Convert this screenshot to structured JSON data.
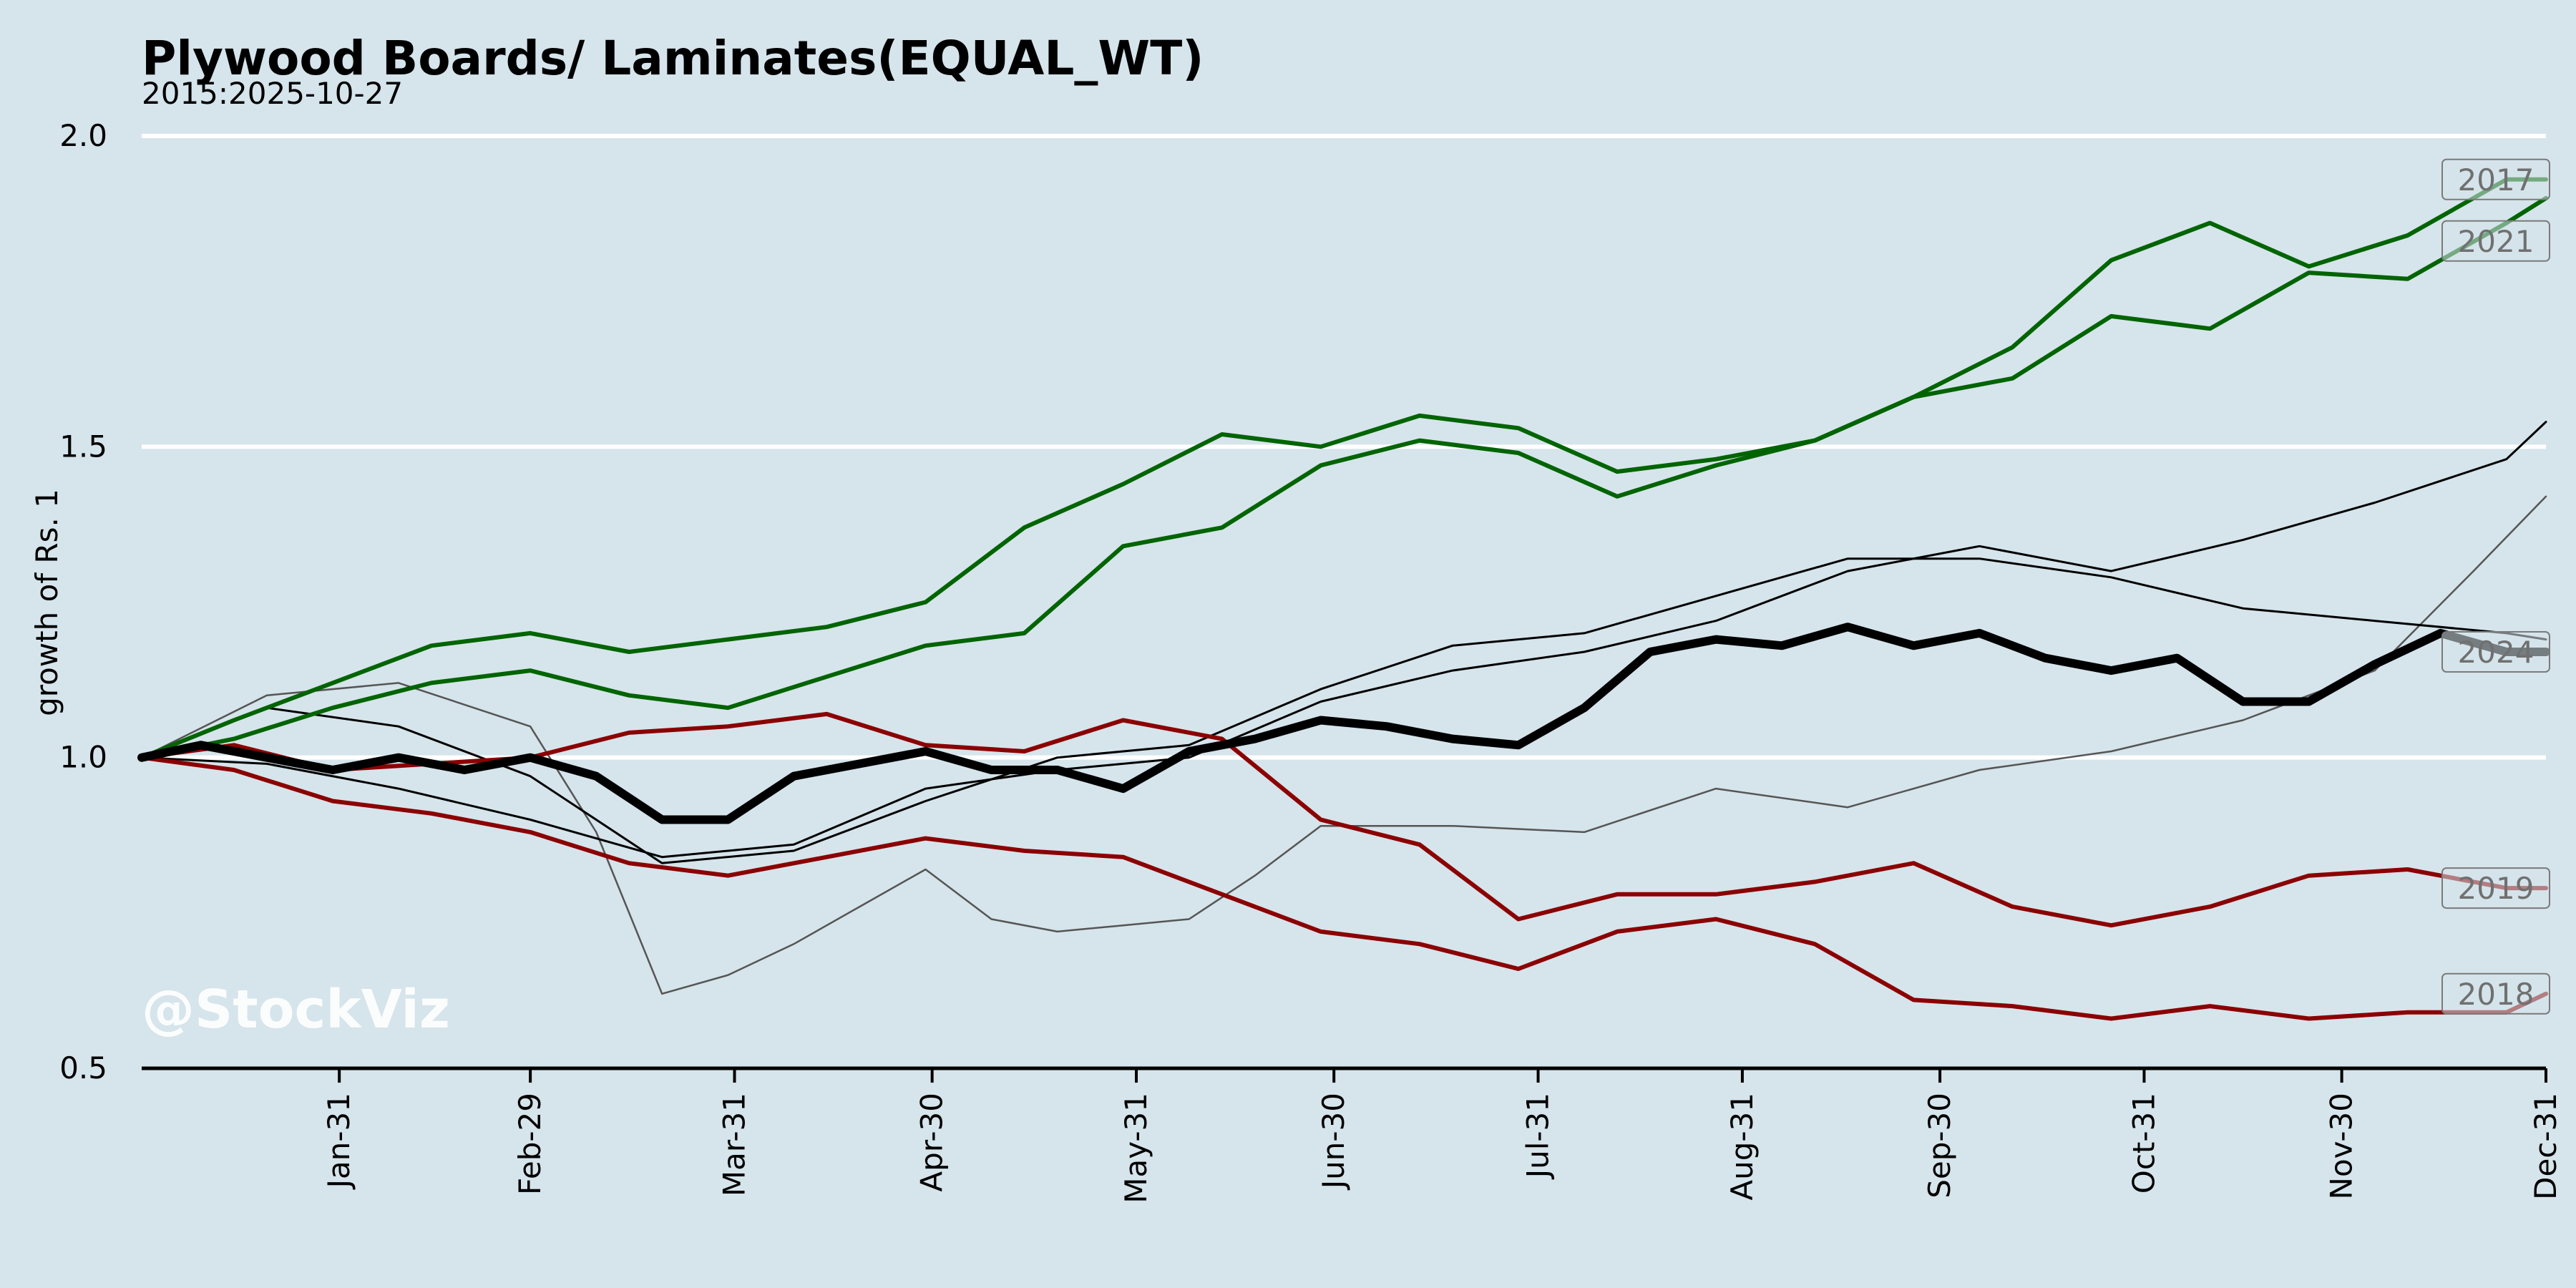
{
  "chart_data": {
    "type": "line",
    "title": "Plywood Boards/ Laminates(EQUAL_WT)",
    "subtitle": "2015:2025-10-27",
    "ylabel": "growth of Rs. 1",
    "xlabel": "",
    "watermark": "@StockViz",
    "ylim": [
      0.5,
      2.0
    ],
    "yticks": [
      "0.5",
      "1.0",
      "1.5",
      "2.0"
    ],
    "xlim": [
      1,
      366
    ],
    "xticks": [
      {
        "day": 31,
        "label": "Jan-31"
      },
      {
        "day": 60,
        "label": "Feb-29"
      },
      {
        "day": 91,
        "label": "Mar-31"
      },
      {
        "day": 121,
        "label": "Apr-30"
      },
      {
        "day": 152,
        "label": "May-31"
      },
      {
        "day": 182,
        "label": "Jun-30"
      },
      {
        "day": 213,
        "label": "Jul-31"
      },
      {
        "day": 244,
        "label": "Aug-31"
      },
      {
        "day": 274,
        "label": "Sep-30"
      },
      {
        "day": 305,
        "label": "Oct-31"
      },
      {
        "day": 335,
        "label": "Nov-30"
      },
      {
        "day": 366,
        "label": "Dec-31"
      }
    ],
    "grid": "horizontal",
    "colors": {
      "background": "#d6e4eb",
      "gridline": "#ffffff",
      "positive": "#006400",
      "negative": "#8b0000",
      "neutral": "#000000",
      "faded": "#555555"
    },
    "series": [
      {
        "name": "2017",
        "style": "positive",
        "x": [
          1,
          15,
          30,
          45,
          60,
          75,
          90,
          105,
          120,
          135,
          150,
          165,
          180,
          195,
          210,
          225,
          240,
          255,
          270,
          285,
          300,
          315,
          330,
          345,
          360,
          366
        ],
        "y": [
          1.0,
          1.06,
          1.12,
          1.18,
          1.2,
          1.17,
          1.19,
          1.21,
          1.25,
          1.37,
          1.44,
          1.52,
          1.5,
          1.55,
          1.53,
          1.46,
          1.48,
          1.51,
          1.58,
          1.66,
          1.8,
          1.86,
          1.79,
          1.84,
          1.93,
          1.93
        ]
      },
      {
        "name": "2021",
        "style": "positive",
        "x": [
          1,
          15,
          30,
          45,
          60,
          75,
          90,
          105,
          120,
          135,
          150,
          165,
          180,
          195,
          210,
          225,
          240,
          255,
          270,
          285,
          300,
          315,
          330,
          345,
          360,
          366
        ],
        "y": [
          1.0,
          1.03,
          1.08,
          1.12,
          1.14,
          1.1,
          1.08,
          1.13,
          1.18,
          1.2,
          1.34,
          1.37,
          1.47,
          1.51,
          1.49,
          1.42,
          1.47,
          1.51,
          1.58,
          1.61,
          1.71,
          1.69,
          1.78,
          1.77,
          1.86,
          1.9
        ]
      },
      {
        "name": "2024",
        "style": "neutral-bold",
        "x": [
          1,
          10,
          20,
          30,
          40,
          50,
          60,
          70,
          80,
          90,
          100,
          110,
          120,
          130,
          140,
          150,
          160,
          170,
          180,
          190,
          200,
          210,
          220,
          230,
          240,
          250,
          260,
          270,
          280,
          290,
          300,
          310,
          320,
          330,
          340,
          350,
          360,
          366
        ],
        "y": [
          1.0,
          1.02,
          1.0,
          0.98,
          1.0,
          0.98,
          1.0,
          0.97,
          0.9,
          0.9,
          0.97,
          0.99,
          1.01,
          0.98,
          0.98,
          0.95,
          1.01,
          1.03,
          1.06,
          1.05,
          1.03,
          1.02,
          1.08,
          1.17,
          1.19,
          1.18,
          1.21,
          1.18,
          1.2,
          1.16,
          1.14,
          1.16,
          1.09,
          1.09,
          1.15,
          1.2,
          1.17,
          1.17
        ]
      },
      {
        "name": "2019",
        "style": "negative",
        "x": [
          1,
          15,
          30,
          45,
          60,
          75,
          90,
          105,
          120,
          135,
          150,
          165,
          180,
          195,
          210,
          225,
          240,
          255,
          270,
          285,
          300,
          315,
          330,
          345,
          360,
          366
        ],
        "y": [
          1.0,
          1.02,
          0.98,
          0.99,
          1.0,
          1.04,
          1.05,
          1.07,
          1.02,
          1.01,
          1.06,
          1.03,
          0.9,
          0.86,
          0.74,
          0.78,
          0.78,
          0.8,
          0.83,
          0.76,
          0.73,
          0.76,
          0.81,
          0.82,
          0.79,
          0.79
        ]
      },
      {
        "name": "2018",
        "style": "negative",
        "x": [
          1,
          15,
          30,
          45,
          60,
          75,
          90,
          105,
          120,
          135,
          150,
          165,
          180,
          195,
          210,
          225,
          240,
          255,
          270,
          285,
          300,
          315,
          330,
          345,
          360,
          366
        ],
        "y": [
          1.0,
          0.98,
          0.93,
          0.91,
          0.88,
          0.83,
          0.81,
          0.84,
          0.87,
          0.85,
          0.84,
          0.78,
          0.72,
          0.7,
          0.66,
          0.72,
          0.74,
          0.7,
          0.61,
          0.6,
          0.58,
          0.6,
          0.58,
          0.59,
          0.59,
          0.62
        ]
      },
      {
        "name": "",
        "style": "neutral",
        "x": [
          1,
          20,
          40,
          60,
          80,
          100,
          120,
          140,
          160,
          180,
          200,
          220,
          240,
          260,
          280,
          300,
          320,
          340,
          360,
          366
        ],
        "y": [
          1.0,
          0.99,
          0.95,
          0.9,
          0.84,
          0.86,
          0.95,
          0.98,
          1.0,
          1.09,
          1.14,
          1.17,
          1.22,
          1.3,
          1.34,
          1.3,
          1.35,
          1.41,
          1.48,
          1.54
        ]
      },
      {
        "name": "",
        "style": "neutral",
        "x": [
          1,
          20,
          40,
          60,
          80,
          100,
          120,
          140,
          160,
          180,
          200,
          220,
          240,
          260,
          280,
          300,
          320,
          340,
          360,
          366
        ],
        "y": [
          1.0,
          1.08,
          1.05,
          0.97,
          0.83,
          0.85,
          0.93,
          1.0,
          1.02,
          1.11,
          1.18,
          1.2,
          1.26,
          1.32,
          1.32,
          1.29,
          1.24,
          1.22,
          1.2,
          1.19
        ]
      },
      {
        "name": "",
        "style": "faded",
        "x": [
          1,
          20,
          40,
          60,
          70,
          80,
          90,
          100,
          110,
          120,
          130,
          140,
          150,
          160,
          170,
          180,
          200,
          220,
          240,
          260,
          280,
          300,
          320,
          340,
          355,
          366
        ],
        "y": [
          1.0,
          1.1,
          1.12,
          1.05,
          0.88,
          0.62,
          0.65,
          0.7,
          0.76,
          0.82,
          0.74,
          0.72,
          0.73,
          0.74,
          0.81,
          0.89,
          0.89,
          0.88,
          0.95,
          0.92,
          0.98,
          1.01,
          1.06,
          1.14,
          1.3,
          1.42
        ]
      }
    ]
  }
}
